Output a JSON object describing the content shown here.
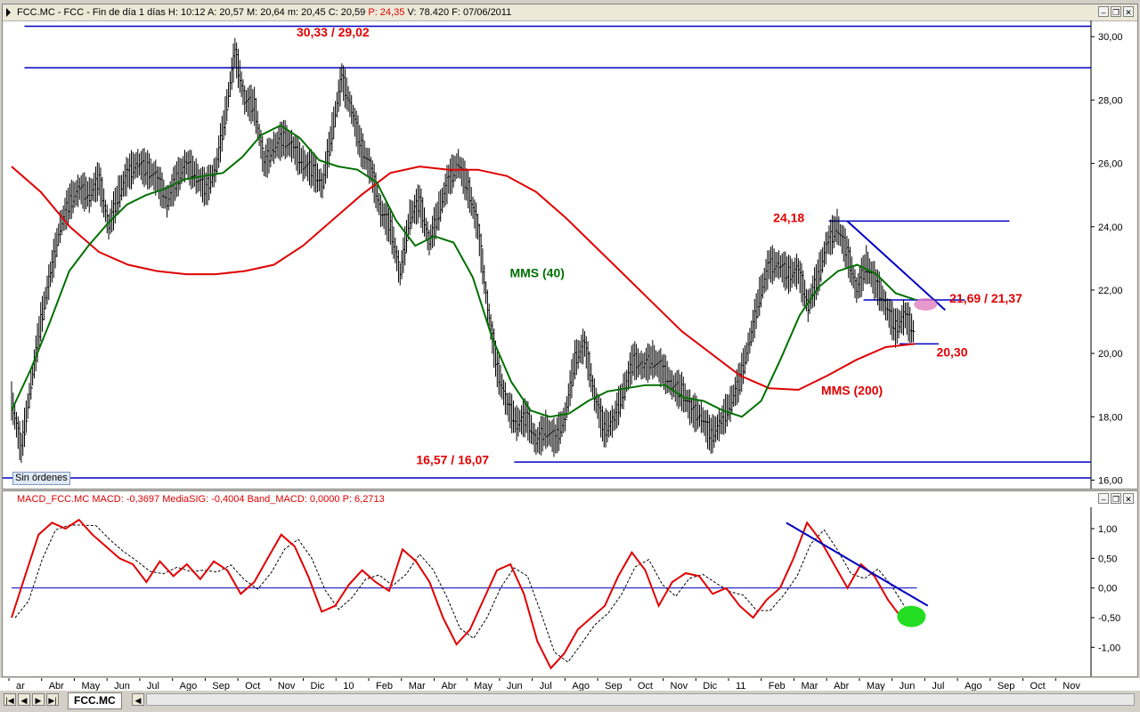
{
  "price_header": "FCC.MC - FCC - Fin de día 1 días  H: 10:12  A: 20,57  M: 20,64  m: 20,45  C: 20,59",
  "price_header_p": "P: 24,35",
  "price_header_rest": "V: 78.420  F: 07/06/2011",
  "macd_header": "MACD_FCC.MC  MACD: -0,3697  MediaSIG: -0,4004  Band_MACD: 0,0000",
  "macd_header_p": "P: 6,2713",
  "no_orders": "Sin órdenes",
  "symbol_tab": "FCC.MC",
  "window_buttons": [
    "minimize-icon",
    "restore-icon",
    "close-icon"
  ],
  "colors": {
    "price": "#000000",
    "mms40": "#007000",
    "mms200": "#e00000",
    "lines": "#0000c0",
    "labels": "#e00000",
    "macd": "#e00000",
    "signal": "#000000"
  },
  "chart_data": [
    {
      "type": "line",
      "name": "price",
      "y_ticks": [
        "30,00",
        "28,00",
        "26,00",
        "24,00",
        "22,00",
        "20,00",
        "18,00",
        "16,00"
      ],
      "ylim": [
        15.9,
        30.4
      ],
      "x_labels": [
        "ar",
        "Abr",
        "May",
        "Jun",
        "Jul",
        "Ago",
        "Sep",
        "Oct",
        "Nov",
        "Dic",
        "10",
        "Feb",
        "Mar",
        "Abr",
        "May",
        "Jun",
        "Jul",
        "Ago",
        "Sep",
        "Oct",
        "Nov",
        "Dic",
        "11",
        "Feb",
        "Mar",
        "Abr",
        "May",
        "Jun",
        "Jul",
        "Ago",
        "Sep",
        "Oct",
        "Nov"
      ],
      "close_series": [
        18.5,
        17,
        19,
        21,
        22.5,
        24,
        24.8,
        25.2,
        25,
        25.5,
        24,
        25,
        25.7,
        26,
        25.8,
        25.5,
        24.8,
        25.5,
        26,
        25.6,
        25.2,
        25.8,
        27.5,
        29.5,
        28,
        27.8,
        26,
        26.5,
        26.8,
        26.5,
        26,
        25.8,
        25.3,
        27,
        28.7,
        27.7,
        26.5,
        25.8,
        24.5,
        24,
        22.5,
        24.3,
        24.8,
        23.5,
        24.5,
        25.5,
        26,
        25.2,
        24,
        21.5,
        19.5,
        18.4,
        17.8,
        18,
        17.2,
        17.6,
        17.3,
        18,
        19.8,
        20.3,
        18.7,
        17.6,
        17.9,
        18.8,
        19.8,
        19.6,
        19.8,
        19.5,
        19,
        18.8,
        18.2,
        18,
        17.4,
        17.8,
        18.4,
        19.2,
        20.4,
        21.8,
        22.8,
        22.8,
        22.5,
        22.6,
        21.5,
        22.4,
        23.5,
        24,
        23.2,
        22,
        22.8,
        22.2,
        21.5,
        20.8,
        21.2,
        20.6
      ],
      "mms40": [
        18.2,
        19.5,
        21,
        22.6,
        23.4,
        24.1,
        24.7,
        25,
        25.2,
        25.5,
        25.6,
        25.7,
        26.2,
        26.9,
        27.2,
        26.8,
        26.1,
        25.9,
        25.8,
        25.4,
        24.2,
        23.4,
        23.7,
        23.5,
        22.4,
        20.5,
        19.1,
        18.2,
        18,
        18.1,
        18.5,
        18.8,
        18.9,
        19,
        19,
        18.6,
        18.5,
        18.2,
        18,
        18.5,
        19.8,
        21.2,
        22.1,
        22.6,
        22.8,
        22.5,
        21.9,
        21.7
      ],
      "mms200": [
        25.9,
        25.1,
        24,
        23.2,
        22.8,
        22.6,
        22.5,
        22.5,
        22.6,
        22.8,
        23.4,
        24.2,
        25,
        25.7,
        25.9,
        25.8,
        25.8,
        25.6,
        25.1,
        24.3,
        23.4,
        22.5,
        21.6,
        20.7,
        20,
        19.3,
        18.9,
        18.85,
        19.3,
        19.8,
        20.2,
        20.3
      ],
      "hlines": [
        {
          "y": 30.33,
          "x0": 0.02,
          "x1": 1.0
        },
        {
          "y": 29.02,
          "x0": 0.02,
          "x1": 1.0
        },
        {
          "y": 24.18,
          "x0": 0.759,
          "x1": 0.925
        },
        {
          "y": 21.69,
          "x0": 0.791,
          "x1": 0.884
        },
        {
          "y": 20.3,
          "x0": 0.824,
          "x1": 0.86
        },
        {
          "y": 16.57,
          "x0": 0.47,
          "x1": 1.0
        },
        {
          "y": 16.07,
          "x0": 0.0,
          "x1": 1.0
        }
      ],
      "trendline": {
        "y0": 24.18,
        "y1": 21.37,
        "x0": 0.776,
        "x1": 0.866
      },
      "annotations": [
        {
          "text": "30,33 / 29,02",
          "x": 0.27,
          "y": 30.0
        },
        {
          "text": "24,18",
          "x": 0.708,
          "y": 24.15
        },
        {
          "text": "21,69 / 21,37",
          "x": 0.87,
          "y": 21.6
        },
        {
          "text": "20,30",
          "x": 0.858,
          "y": 19.9
        },
        {
          "text": "MMS (200)",
          "x": 0.752,
          "y": 18.7
        },
        {
          "text": "16,57 / 16,07",
          "x": 0.38,
          "y": 16.5
        }
      ],
      "series_labels": [
        {
          "text": "MMS (40)",
          "x": 0.466,
          "y": 22.4
        }
      ],
      "highlight": {
        "x": 0.848,
        "y": 21.55
      }
    },
    {
      "type": "line",
      "name": "macd",
      "y_ticks": [
        "1,00",
        "0,50",
        "0,00",
        "-0,50",
        "-1,00"
      ],
      "ylim": [
        -1.4,
        1.3
      ],
      "zero_line": 0.0,
      "macd": [
        -0.5,
        0.2,
        0.9,
        1.1,
        1.0,
        1.15,
        0.9,
        0.7,
        0.5,
        0.4,
        0.1,
        0.45,
        0.2,
        0.4,
        0.15,
        0.45,
        0.3,
        -0.1,
        0.1,
        0.5,
        0.9,
        0.7,
        0.2,
        -0.4,
        -0.3,
        0.05,
        0.3,
        0.1,
        -0.05,
        0.65,
        0.45,
        0.1,
        -0.5,
        -0.95,
        -0.7,
        -0.2,
        0.3,
        0.4,
        -0.1,
        -0.9,
        -1.35,
        -1.1,
        -0.7,
        -0.5,
        -0.3,
        0.2,
        0.6,
        0.3,
        -0.3,
        0.1,
        0.25,
        0.2,
        -0.1,
        0.0,
        -0.3,
        -0.5,
        -0.2,
        0.0,
        0.5,
        1.1,
        0.8,
        0.4,
        0.0,
        0.4,
        0.2,
        -0.2,
        -0.5,
        -0.37
      ],
      "signal_shift": 0.6,
      "trendline": {
        "y0": 1.1,
        "y1": -0.3,
        "x0": 0.72,
        "x1": 0.85
      },
      "highlight": {
        "x": 0.835,
        "y": -0.48
      }
    }
  ]
}
